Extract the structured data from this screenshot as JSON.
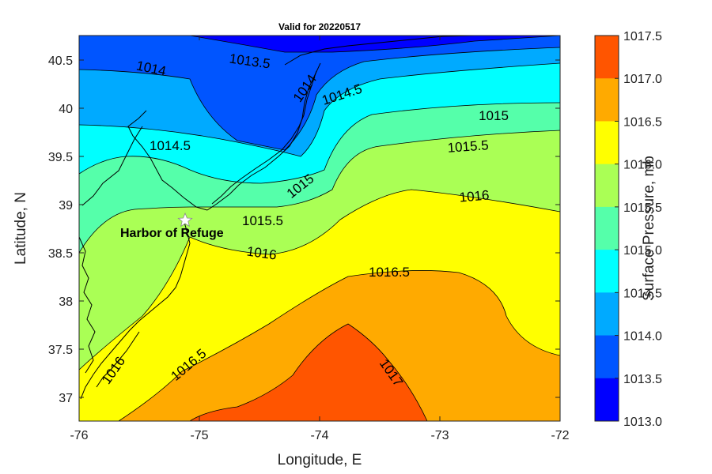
{
  "title": "Valid for 20220517",
  "x_axis": {
    "label": "Longitude, E",
    "ticks": [
      "-76",
      "-75",
      "-74",
      "-73",
      "-72"
    ]
  },
  "y_axis": {
    "label": "Latitude, N",
    "ticks": [
      "40.5",
      "40",
      "39.5",
      "39",
      "38.5",
      "38",
      "37.5",
      "37"
    ]
  },
  "colorbar": {
    "label": "Surface Pressure, mb",
    "ticks": [
      "1017.5",
      "1017.0",
      "1016.5",
      "1016.0",
      "1015.5",
      "1015.0",
      "1014.5",
      "1014.0",
      "1013.5",
      "1013.0"
    ],
    "colors": [
      "#ff5500",
      "#ffaa00",
      "#ffff00",
      "#aaff55",
      "#55ffaa",
      "#00ffff",
      "#00aaff",
      "#0055ff",
      "#0000ff"
    ]
  },
  "station": {
    "name": "Harbor of Refuge",
    "lon": -75.1,
    "lat": 38.8
  },
  "contour_labels": [
    "1014",
    "1013.5",
    "1014",
    "1014.5",
    "1015",
    "1014.5",
    "1015.5",
    "1015",
    "1016",
    "1015.5",
    "1016",
    "1016.5",
    "1016",
    "1016.5",
    "1017"
  ],
  "chart_data": {
    "type": "heatmap",
    "title": "Valid for 20220517",
    "xlabel": "Longitude, E",
    "ylabel": "Latitude, N",
    "xlim": [
      -76,
      -72
    ],
    "ylim": [
      36.75,
      40.75
    ],
    "zlabel": "Surface Pressure, mb",
    "zlim": [
      1013.0,
      1017.5
    ],
    "contour_levels": [
      1013.5,
      1014,
      1014.5,
      1015,
      1015.5,
      1016,
      1016.5,
      1017
    ],
    "color_levels": [
      1013.0,
      1013.5,
      1014.0,
      1014.5,
      1015.0,
      1015.5,
      1016.0,
      1016.5,
      1017.0,
      1017.5
    ],
    "regions": [
      {
        "range": [
          1013.0,
          1013.5
        ],
        "description": "northern edge near -75 to -74.2, 40.7"
      },
      {
        "range": [
          1013.5,
          1014.5
        ],
        "description": "north, around NY harbor area"
      },
      {
        "range": [
          1014.5,
          1015.0
        ],
        "description": "band across 39.3-40.2 N"
      },
      {
        "range": [
          1015.0,
          1016.0
        ],
        "description": "band across 38.6-39.5 N"
      },
      {
        "range": [
          1016.0,
          1016.5
        ],
        "description": "central band 37.5-38.9 N"
      },
      {
        "range": [
          1016.5,
          1017.0
        ],
        "description": "southern band 36.8-38.2 N"
      },
      {
        "range": [
          1017.0,
          1017.5
        ],
        "description": "southern core near -73.8, 37.0"
      }
    ]
  }
}
